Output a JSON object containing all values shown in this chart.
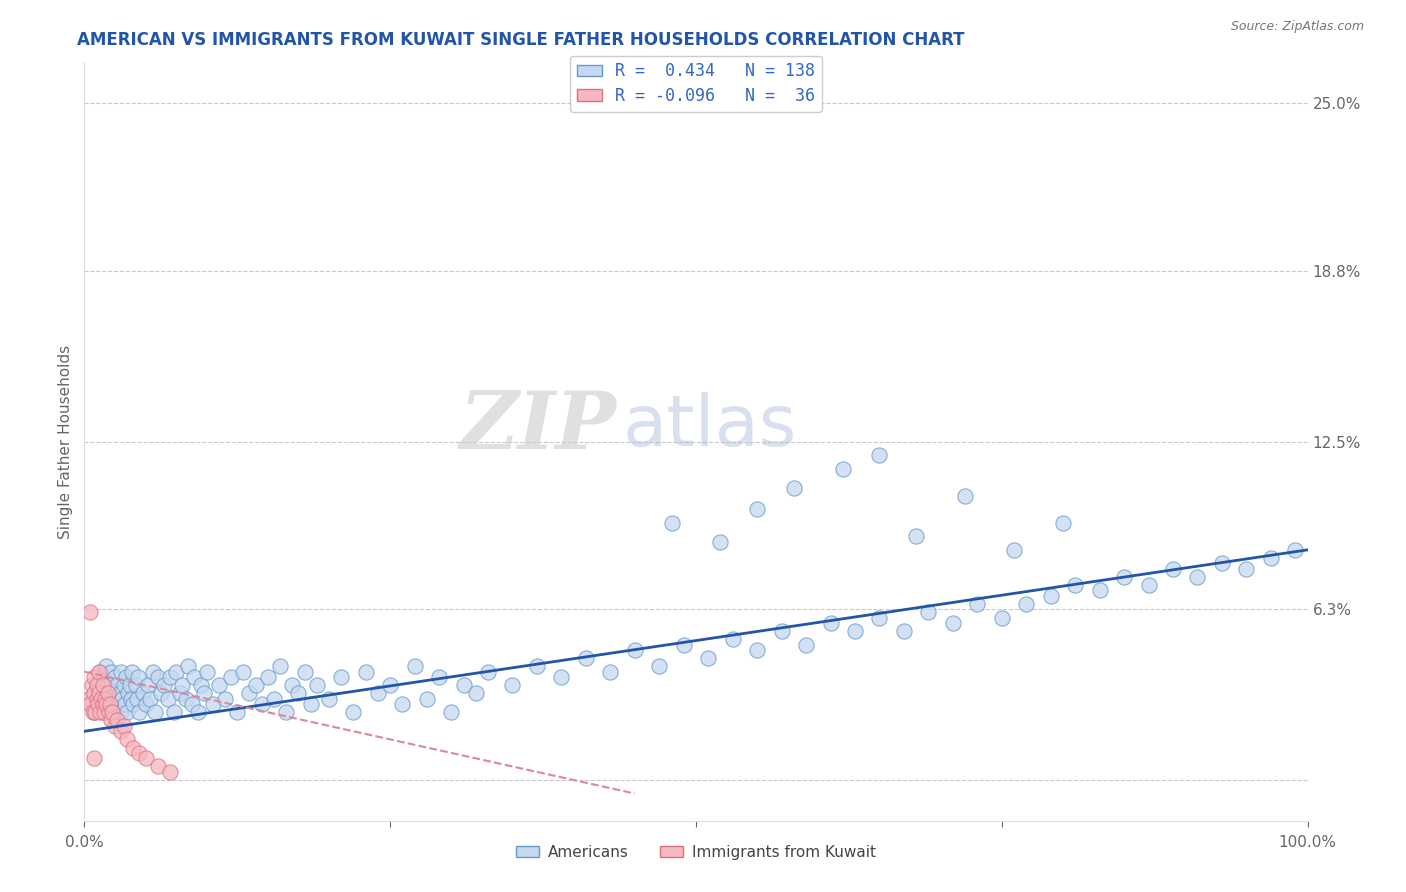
{
  "title": "AMERICAN VS IMMIGRANTS FROM KUWAIT SINGLE FATHER HOUSEHOLDS CORRELATION CHART",
  "source_text": "Source: ZipAtlas.com",
  "xlabel": "",
  "ylabel": "Single Father Households",
  "xlim": [
    0.0,
    1.0
  ],
  "ylim": [
    -0.015,
    0.265
  ],
  "right_yticks": [
    0.0,
    0.063,
    0.125,
    0.188,
    0.25
  ],
  "right_yticklabels": [
    "",
    "6.3%",
    "12.5%",
    "18.8%",
    "25.0%"
  ],
  "blue_face": "#c5d8f0",
  "blue_edge": "#6699cc",
  "pink_face": "#f5b8c0",
  "pink_edge": "#e07080",
  "trend_blue": "#2255aa",
  "trend_pink": "#dd8899",
  "legend_text_color": "#3366cc",
  "title_color": "#2255aa",
  "grid_color": "#bbbbbb",
  "background_color": "#ffffff",
  "blue_trend_x": [
    0.0,
    1.0
  ],
  "blue_trend_y": [
    0.018,
    0.085
  ],
  "pink_trend_x": [
    0.0,
    0.45
  ],
  "pink_trend_y": [
    0.04,
    -0.005
  ],
  "american_x": [
    0.005,
    0.008,
    0.01,
    0.01,
    0.012,
    0.013,
    0.015,
    0.015,
    0.016,
    0.017,
    0.018,
    0.018,
    0.02,
    0.02,
    0.021,
    0.022,
    0.023,
    0.024,
    0.025,
    0.025,
    0.026,
    0.027,
    0.028,
    0.029,
    0.03,
    0.03,
    0.031,
    0.032,
    0.033,
    0.034,
    0.035,
    0.036,
    0.037,
    0.038,
    0.039,
    0.04,
    0.042,
    0.043,
    0.044,
    0.045,
    0.048,
    0.05,
    0.052,
    0.054,
    0.056,
    0.058,
    0.06,
    0.063,
    0.065,
    0.068,
    0.07,
    0.073,
    0.075,
    0.078,
    0.08,
    0.083,
    0.085,
    0.088,
    0.09,
    0.093,
    0.095,
    0.098,
    0.1,
    0.105,
    0.11,
    0.115,
    0.12,
    0.125,
    0.13,
    0.135,
    0.14,
    0.145,
    0.15,
    0.155,
    0.16,
    0.165,
    0.17,
    0.175,
    0.18,
    0.185,
    0.19,
    0.2,
    0.21,
    0.22,
    0.23,
    0.24,
    0.25,
    0.26,
    0.27,
    0.28,
    0.29,
    0.3,
    0.31,
    0.32,
    0.33,
    0.35,
    0.37,
    0.39,
    0.41,
    0.43,
    0.45,
    0.47,
    0.49,
    0.51,
    0.53,
    0.55,
    0.57,
    0.59,
    0.61,
    0.63,
    0.65,
    0.67,
    0.69,
    0.71,
    0.73,
    0.75,
    0.77,
    0.79,
    0.81,
    0.83,
    0.85,
    0.87,
    0.89,
    0.91,
    0.93,
    0.95,
    0.97,
    0.99,
    0.48,
    0.52,
    0.55,
    0.58,
    0.62,
    0.65,
    0.68,
    0.72,
    0.76,
    0.8
  ],
  "american_y": [
    0.03,
    0.025,
    0.035,
    0.028,
    0.032,
    0.04,
    0.025,
    0.038,
    0.03,
    0.035,
    0.028,
    0.042,
    0.025,
    0.035,
    0.03,
    0.04,
    0.028,
    0.032,
    0.025,
    0.038,
    0.03,
    0.035,
    0.028,
    0.032,
    0.025,
    0.04,
    0.03,
    0.035,
    0.028,
    0.038,
    0.025,
    0.032,
    0.035,
    0.03,
    0.04,
    0.028,
    0.035,
    0.03,
    0.038,
    0.025,
    0.032,
    0.028,
    0.035,
    0.03,
    0.04,
    0.025,
    0.038,
    0.032,
    0.035,
    0.03,
    0.038,
    0.025,
    0.04,
    0.032,
    0.035,
    0.03,
    0.042,
    0.028,
    0.038,
    0.025,
    0.035,
    0.032,
    0.04,
    0.028,
    0.035,
    0.03,
    0.038,
    0.025,
    0.04,
    0.032,
    0.035,
    0.028,
    0.038,
    0.03,
    0.042,
    0.025,
    0.035,
    0.032,
    0.04,
    0.028,
    0.035,
    0.03,
    0.038,
    0.025,
    0.04,
    0.032,
    0.035,
    0.028,
    0.042,
    0.03,
    0.038,
    0.025,
    0.035,
    0.032,
    0.04,
    0.035,
    0.042,
    0.038,
    0.045,
    0.04,
    0.048,
    0.042,
    0.05,
    0.045,
    0.052,
    0.048,
    0.055,
    0.05,
    0.058,
    0.055,
    0.06,
    0.055,
    0.062,
    0.058,
    0.065,
    0.06,
    0.065,
    0.068,
    0.072,
    0.07,
    0.075,
    0.072,
    0.078,
    0.075,
    0.08,
    0.078,
    0.082,
    0.085,
    0.095,
    0.088,
    0.1,
    0.108,
    0.115,
    0.12,
    0.09,
    0.105,
    0.085,
    0.095
  ],
  "kuwait_x": [
    0.003,
    0.005,
    0.006,
    0.007,
    0.008,
    0.008,
    0.009,
    0.01,
    0.01,
    0.011,
    0.012,
    0.012,
    0.013,
    0.014,
    0.015,
    0.015,
    0.016,
    0.017,
    0.018,
    0.019,
    0.02,
    0.021,
    0.022,
    0.023,
    0.025,
    0.027,
    0.03,
    0.032,
    0.035,
    0.04,
    0.045,
    0.05,
    0.06,
    0.07,
    0.005,
    0.008
  ],
  "kuwait_y": [
    0.03,
    0.028,
    0.035,
    0.025,
    0.032,
    0.038,
    0.025,
    0.03,
    0.035,
    0.028,
    0.032,
    0.04,
    0.025,
    0.03,
    0.028,
    0.035,
    0.025,
    0.03,
    0.028,
    0.032,
    0.025,
    0.028,
    0.022,
    0.025,
    0.02,
    0.022,
    0.018,
    0.02,
    0.015,
    0.012,
    0.01,
    0.008,
    0.005,
    0.003,
    0.062,
    0.008
  ]
}
